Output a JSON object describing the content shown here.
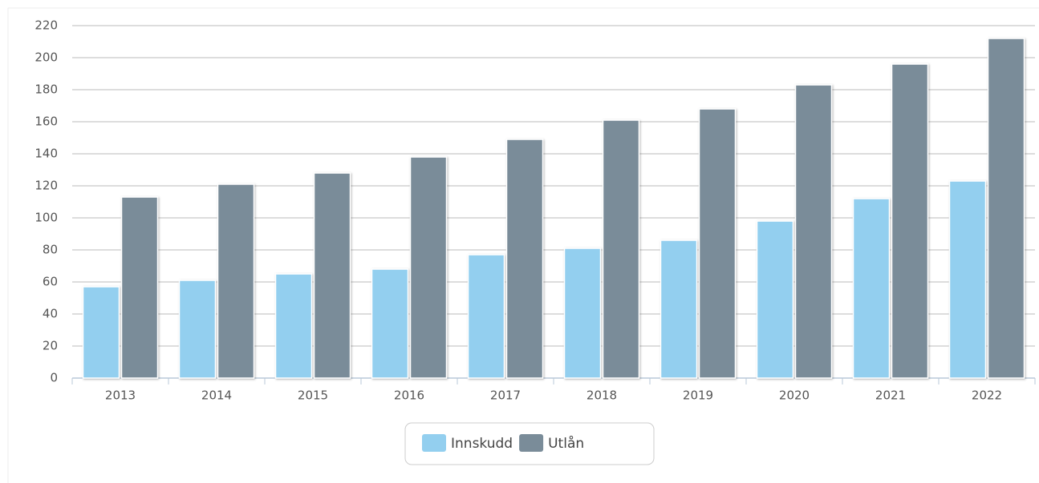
{
  "chart_data": {
    "type": "bar",
    "categories": [
      "2013",
      "2014",
      "2015",
      "2016",
      "2017",
      "2018",
      "2019",
      "2020",
      "2021",
      "2022"
    ],
    "series": [
      {
        "name": "Innskudd",
        "color": "#93cfef",
        "values": [
          57,
          61,
          65,
          68,
          77,
          81,
          86,
          98,
          112,
          123
        ]
      },
      {
        "name": "Utlån",
        "color": "#7a8c99",
        "values": [
          113,
          121,
          128,
          138,
          149,
          161,
          168,
          183,
          196,
          212
        ]
      }
    ],
    "ylim": [
      0,
      220
    ],
    "yticks": [
      0,
      20,
      40,
      60,
      80,
      100,
      120,
      140,
      160,
      180,
      200,
      220
    ],
    "grid": true,
    "legend": "bottom"
  }
}
